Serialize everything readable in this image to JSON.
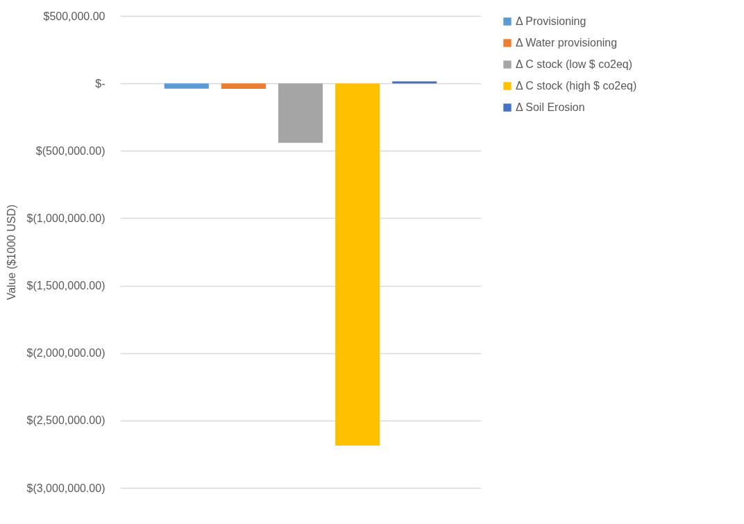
{
  "chart_data": {
    "type": "bar",
    "ylabel": "Value ($1000 USD)",
    "categories": [
      null
    ],
    "series": [
      {
        "name": "Δ Provisioning",
        "color": "#5b9bd5",
        "values": [
          -39000
        ]
      },
      {
        "name": "Δ Water provisioning",
        "color": "#ed7d31",
        "values": [
          -40000
        ]
      },
      {
        "name": "Δ C stock (low $ co2eq)",
        "color": "#a5a5a5",
        "values": [
          -441000
        ]
      },
      {
        "name": "Δ C stock (high $ co2eq)",
        "color": "#ffc000",
        "values": [
          -2686000
        ]
      },
      {
        "name": "Δ Soil Erosion",
        "color": "#4472c4",
        "values": [
          15000
        ]
      }
    ],
    "ylim": [
      -3000000,
      500000
    ],
    "yticks": [
      {
        "value": -3000000,
        "label": "$(3,000,000.00)"
      },
      {
        "value": -2500000,
        "label": "$(2,500,000.00)"
      },
      {
        "value": -2000000,
        "label": "$(2,000,000.00)"
      },
      {
        "value": -1500000,
        "label": "$(1,500,000.00)"
      },
      {
        "value": -1000000,
        "label": "$(1,000,000.00)"
      },
      {
        "value": -500000,
        "label": "$(500,000.00)"
      },
      {
        "value": 0,
        "label": "$-"
      },
      {
        "value": 500000,
        "label": "$500,000.00"
      }
    ],
    "grid": "y",
    "legend": "right"
  }
}
